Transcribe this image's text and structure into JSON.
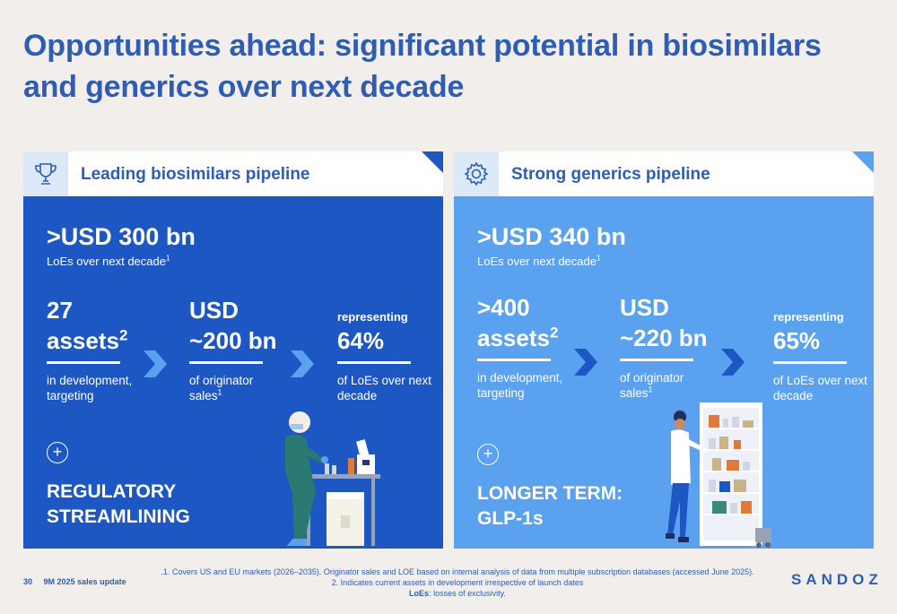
{
  "title": "Opportunities ahead: significant potential in biosimilars and generics over next decade",
  "left": {
    "icon": "trophy-icon",
    "heading": "Leading biosimilars pipeline",
    "big_value": ">USD 300 bn",
    "big_sub": "LoEs over next decade",
    "big_sub_sup": "1",
    "stat1_line1": "27",
    "stat1_line2": "assets",
    "stat1_sup": "2",
    "stat1_desc1": "in development,",
    "stat1_desc2": "targeting",
    "stat2_line1": "USD",
    "stat2_line2": "~200 bn",
    "stat2_desc1": "of originator",
    "stat2_desc2": "sales",
    "stat2_sup": "1",
    "stat3_line1": "representing",
    "stat3_line2": "64%",
    "stat3_desc1": "of LoEs over next",
    "stat3_desc2": "decade",
    "plus": "+",
    "caption_line1": "REGULATORY",
    "caption_line2": "STREAMLINING"
  },
  "right": {
    "icon": "gear-icon",
    "heading": "Strong generics pipeline",
    "big_value": ">USD 340 bn",
    "big_sub": "LoEs over next decade",
    "big_sub_sup": "1",
    "stat1_line1": ">400",
    "stat1_line2": "assets",
    "stat1_sup": "2",
    "stat1_desc1": "in development,",
    "stat1_desc2": "targeting",
    "stat2_line1": "USD",
    "stat2_line2": "~220 bn",
    "stat2_desc1": "of originator",
    "stat2_desc2": "sales",
    "stat2_sup": "1",
    "stat3_line1": "representing",
    "stat3_line2": "65%",
    "stat3_desc1": "of LoEs over next",
    "stat3_desc2": "decade",
    "plus": "+",
    "caption_line1": "LONGER TERM:",
    "caption_line2": "GLP-1s"
  },
  "footer": {
    "page": "30",
    "label": "9M 2025 sales update",
    "note1": ".1. Covers US and EU markets (2026–2035). Originator sales and LOE based on internal analysis of data from multiple subscription databases (accessed June 2025).",
    "note2": "2. Indicates current assets in development irrespective of launch dates",
    "note3_term": "LoEs",
    "note3_text": ": losses of exclusivity.",
    "logo": "SANDOZ"
  },
  "colors": {
    "title": "#2f5db3",
    "left_panel": "#1d57c4",
    "right_panel": "#5aa2f0",
    "background": "#f1eeeb"
  }
}
